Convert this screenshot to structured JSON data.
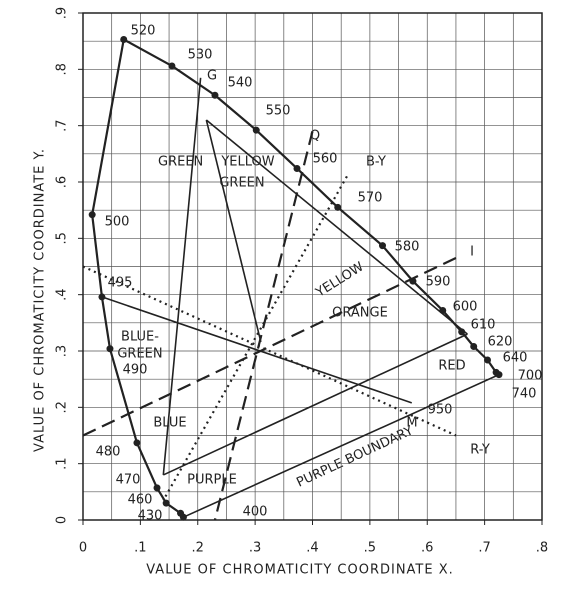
{
  "chart_data": {
    "type": "chromaticity",
    "xlabel": "VALUE OF CHROMATICITY COORDINATE X.",
    "ylabel": "VALUE OF CHROMATICITY COORDINATE Y.",
    "xlim": [
      0,
      0.8
    ],
    "ylim": [
      0,
      0.9
    ],
    "xticks": [
      0,
      {
        "value": 0.1,
        "label": ".1"
      },
      {
        "value": 0.2,
        "label": ".2"
      },
      {
        "value": 0.3,
        "label": ".3"
      },
      {
        "value": 0.4,
        "label": ".4"
      },
      {
        "value": 0.5,
        "label": ".5"
      },
      {
        "value": 0.6,
        "label": ".6"
      },
      {
        "value": 0.7,
        "label": ".7"
      },
      {
        "value": 0.8,
        "label": ".8"
      }
    ],
    "yticks": [
      0,
      {
        "value": 0.1,
        "label": ".1"
      },
      {
        "value": 0.2,
        "label": ".2"
      },
      {
        "value": 0.3,
        "label": ".3"
      },
      {
        "value": 0.4,
        "label": ".4"
      },
      {
        "value": 0.5,
        "label": ".5"
      },
      {
        "value": 0.6,
        "label": ".6"
      },
      {
        "value": 0.7,
        "label": ".7"
      },
      {
        "value": 0.8,
        "label": ".8"
      },
      {
        "value": 0.9,
        "label": ".9"
      }
    ],
    "grid": true,
    "grid_step": 0.05,
    "color": "#222222",
    "locus": [
      {
        "label": "400",
        "x": 0.175,
        "y": 0.005
      },
      {
        "label": "430",
        "x": 0.17,
        "y": 0.012
      },
      {
        "label": "460",
        "x": 0.145,
        "y": 0.03
      },
      {
        "label": "470",
        "x": 0.129,
        "y": 0.057
      },
      {
        "label": "480",
        "x": 0.094,
        "y": 0.137
      },
      {
        "label": "490",
        "x": 0.047,
        "y": 0.304
      },
      {
        "label": "495",
        "x": 0.033,
        "y": 0.396
      },
      {
        "label": "500",
        "x": 0.016,
        "y": 0.542
      },
      {
        "label": "520",
        "x": 0.071,
        "y": 0.853
      },
      {
        "label": "530",
        "x": 0.155,
        "y": 0.806
      },
      {
        "label": "540",
        "x": 0.23,
        "y": 0.754
      },
      {
        "label": "550",
        "x": 0.302,
        "y": 0.692
      },
      {
        "label": "560",
        "x": 0.373,
        "y": 0.624
      },
      {
        "label": "570",
        "x": 0.444,
        "y": 0.555
      },
      {
        "label": "580",
        "x": 0.522,
        "y": 0.487
      },
      {
        "label": "590",
        "x": 0.575,
        "y": 0.424
      },
      {
        "label": "600",
        "x": 0.627,
        "y": 0.372
      },
      {
        "label": "610",
        "x": 0.66,
        "y": 0.334
      },
      {
        "label": "620",
        "x": 0.681,
        "y": 0.308
      },
      {
        "label": "640",
        "x": 0.705,
        "y": 0.284
      },
      {
        "label": "700",
        "x": 0.72,
        "y": 0.262
      },
      {
        "label": "740",
        "x": 0.725,
        "y": 0.258
      }
    ],
    "lines": [
      {
        "x": [
          0.14,
          0.205
        ],
        "y": [
          0.08,
          0.785
        ],
        "style": "solid"
      },
      {
        "x": [
          0.215,
          0.67
        ],
        "y": [
          0.71,
          0.33
        ],
        "style": "solid"
      },
      {
        "x": [
          0.14,
          0.67
        ],
        "y": [
          0.08,
          0.33
        ],
        "style": "solid"
      },
      {
        "x": [
          0.033,
          0.573
        ],
        "y": [
          0.396,
          0.208
        ],
        "style": "solid"
      },
      {
        "x": [
          0.175,
          0.725
        ],
        "y": [
          0.005,
          0.258
        ],
        "style": "solid"
      },
      {
        "x": [
          0.215,
          0.31
        ],
        "y": [
          0.71,
          0.316
        ],
        "style": "solid"
      },
      {
        "x": [
          0.4,
          0.23
        ],
        "y": [
          0.69,
          0
        ],
        "style": "dashed"
      },
      {
        "x": [
          0,
          0.66
        ],
        "y": [
          0.15,
          0.47
        ],
        "style": "dashed"
      },
      {
        "x": [
          0.46,
          0.14
        ],
        "y": [
          0.61,
          0.035
        ],
        "style": "dotted"
      },
      {
        "x": [
          0,
          0.65
        ],
        "y": [
          0.45,
          0.15
        ],
        "style": "dotted"
      }
    ],
    "regions": {
      "green": "GREEN",
      "yellow_green": [
        "YELLOW",
        "GREEN"
      ],
      "blue_green": [
        "BLUE-",
        "GREEN"
      ],
      "blue": "BLUE",
      "purple": "PURPLE",
      "red": "RED",
      "yellow": "YELLOW",
      "orange": "ORANGE",
      "purple_boundary": "PURPLE BOUNDARY"
    },
    "annotations": {
      "g": "G",
      "q": "Q",
      "b_y": "B-Y",
      "i": "I",
      "m": "M",
      "r_y": "R-Y",
      "n950": "950"
    }
  }
}
